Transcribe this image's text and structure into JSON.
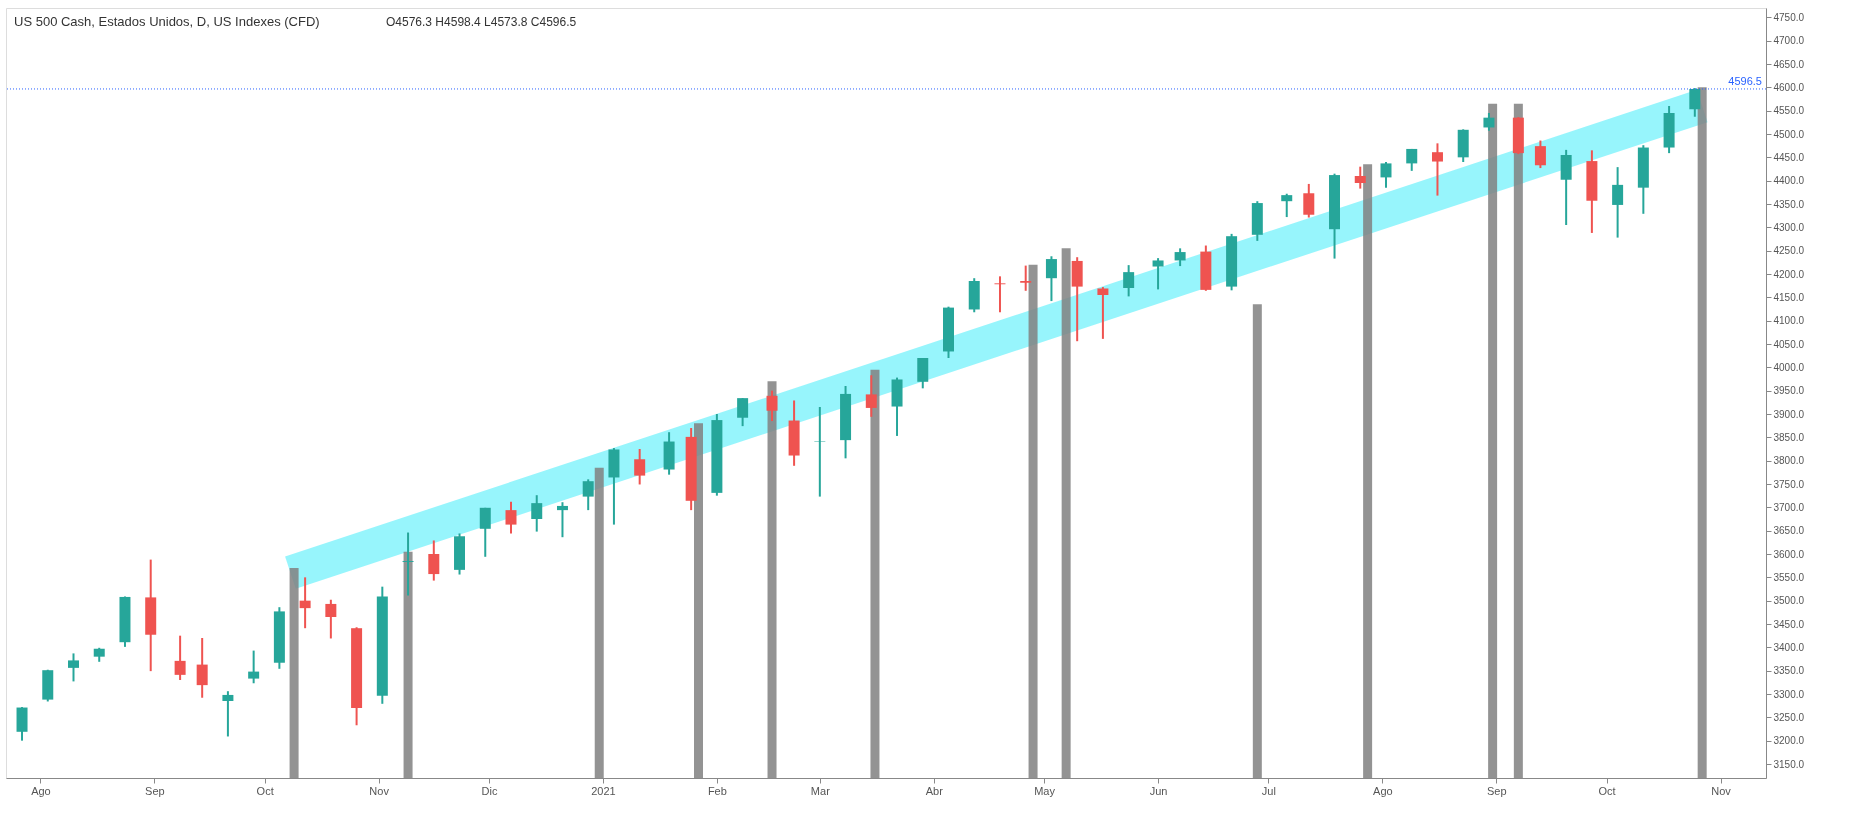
{
  "chart_data": {
    "type": "candlestick",
    "title": "US 500 Cash, Estados Unidos, D, US Indexes (CFD)",
    "annotations": [
      "O4576.3 H4598.4 L4573.8 C4596.5"
    ],
    "x": [
      "2020-07-27",
      "2020-08-03",
      "2020-08-10",
      "2020-08-17",
      "2020-08-24",
      "2020-08-31",
      "2020-09-08",
      "2020-09-14",
      "2020-09-21",
      "2020-09-28",
      "2020-10-05",
      "2020-10-12",
      "2020-10-19",
      "2020-10-26",
      "2020-11-02",
      "2020-11-09",
      "2020-11-16",
      "2020-11-23",
      "2020-11-30",
      "2020-12-07",
      "2020-12-14",
      "2020-12-21",
      "2020-12-28",
      "2021-01-04",
      "2021-01-11",
      "2021-01-19",
      "2021-01-25",
      "2021-02-01",
      "2021-02-08",
      "2021-02-16",
      "2021-02-22",
      "2021-03-01",
      "2021-03-08",
      "2021-03-15",
      "2021-03-22",
      "2021-03-29",
      "2021-04-05",
      "2021-04-12",
      "2021-04-19",
      "2021-04-26",
      "2021-05-03",
      "2021-05-10",
      "2021-05-17",
      "2021-05-24",
      "2021-06-01",
      "2021-06-07",
      "2021-06-14",
      "2021-06-21",
      "2021-06-28",
      "2021-07-06",
      "2021-07-12",
      "2021-07-19",
      "2021-07-26",
      "2021-08-02",
      "2021-08-09",
      "2021-08-16",
      "2021-08-23",
      "2021-08-30",
      "2021-09-07",
      "2021-09-13",
      "2021-09-20",
      "2021-09-27",
      "2021-10-04",
      "2021-10-11",
      "2021-10-18",
      "2021-10-25"
    ],
    "ohlc": [
      [
        3219,
        3272,
        3200,
        3271
      ],
      [
        3288,
        3352,
        3284,
        3351
      ],
      [
        3356,
        3387,
        3327,
        3372
      ],
      [
        3380,
        3399,
        3369,
        3397
      ],
      [
        3411,
        3509,
        3401,
        3508
      ],
      [
        3507,
        3588,
        3349,
        3427
      ],
      [
        3371,
        3425,
        3330,
        3341
      ],
      [
        3363,
        3420,
        3292,
        3319
      ],
      [
        3285,
        3306,
        3209,
        3298
      ],
      [
        3333,
        3393,
        3323,
        3348
      ],
      [
        3367,
        3486,
        3354,
        3477
      ],
      [
        3500,
        3550,
        3441,
        3484
      ],
      [
        3493,
        3502,
        3419,
        3465
      ],
      [
        3441,
        3443,
        3233,
        3270
      ],
      [
        3296,
        3530,
        3279,
        3509
      ],
      [
        3583,
        3646,
        3511,
        3585
      ],
      [
        3600,
        3629,
        3543,
        3557
      ],
      [
        3566,
        3644,
        3556,
        3638
      ],
      [
        3654,
        3699,
        3594,
        3699
      ],
      [
        3694,
        3712,
        3644,
        3663
      ],
      [
        3675,
        3726,
        3648,
        3709
      ],
      [
        3694,
        3711,
        3636,
        3703
      ],
      [
        3723,
        3760,
        3694,
        3756
      ],
      [
        3764,
        3827,
        3663,
        3824
      ],
      [
        3803,
        3825,
        3749,
        3768
      ],
      [
        3781,
        3861,
        3770,
        3841
      ],
      [
        3851,
        3870,
        3694,
        3714
      ],
      [
        3731,
        3900,
        3725,
        3887
      ],
      [
        3892,
        3934,
        3874,
        3934
      ],
      [
        3939,
        3950,
        3885,
        3907
      ],
      [
        3886,
        3929,
        3789,
        3811
      ],
      [
        3842,
        3915,
        3723,
        3841
      ],
      [
        3844,
        3960,
        3805,
        3943
      ],
      [
        3942,
        3983,
        3894,
        3913
      ],
      [
        3916,
        3978,
        3853,
        3974
      ],
      [
        3969,
        4020,
        3955,
        4020
      ],
      [
        4034,
        4130,
        4020,
        4128
      ],
      [
        4124,
        4191,
        4118,
        4185
      ],
      [
        4180,
        4195,
        4118,
        4178
      ],
      [
        4185,
        4218,
        4164,
        4181
      ],
      [
        4191,
        4238,
        4142,
        4232
      ],
      [
        4228,
        4236,
        4056,
        4173
      ],
      [
        4169,
        4172,
        4061,
        4155
      ],
      [
        4170,
        4219,
        4152,
        4204
      ],
      [
        4216,
        4234,
        4167,
        4229
      ],
      [
        4229,
        4255,
        4217,
        4247
      ],
      [
        4248,
        4261,
        4164,
        4166
      ],
      [
        4173,
        4286,
        4165,
        4281
      ],
      [
        4284,
        4356,
        4271,
        4352
      ],
      [
        4356,
        4372,
        4322,
        4369
      ],
      [
        4373,
        4393,
        4321,
        4327
      ],
      [
        4296,
        4415,
        4233,
        4412
      ],
      [
        4410,
        4430,
        4383,
        4395
      ],
      [
        4407,
        4440,
        4385,
        4437
      ],
      [
        4437,
        4468,
        4421,
        4468
      ],
      [
        4461,
        4480,
        4368,
        4441
      ],
      [
        4450,
        4510,
        4440,
        4509
      ],
      [
        4514,
        4545,
        4507,
        4535
      ],
      [
        4535,
        4536,
        4457,
        4459
      ],
      [
        4474,
        4486,
        4427,
        4433
      ],
      [
        4402,
        4466,
        4305,
        4455
      ],
      [
        4442,
        4465,
        4288,
        4357
      ],
      [
        4348,
        4429,
        4278,
        4391
      ],
      [
        4385,
        4476,
        4329,
        4471
      ],
      [
        4471,
        4560,
        4459,
        4545
      ],
      [
        4553,
        4598.4,
        4537,
        4596.5
      ]
    ],
    "colors": [
      "#26a69a",
      "#26a69a",
      "#26a69a",
      "#26a69a",
      "#26a69a",
      "#ef5350",
      "#ef5350",
      "#ef5350",
      "#26a69a",
      "#26a69a",
      "#26a69a",
      "#ef5350",
      "#ef5350",
      "#ef5350",
      "#26a69a",
      "#26a69a",
      "#ef5350",
      "#26a69a",
      "#26a69a",
      "#ef5350",
      "#26a69a",
      "#26a69a",
      "#26a69a",
      "#26a69a",
      "#ef5350",
      "#26a69a",
      "#ef5350",
      "#26a69a",
      "#26a69a",
      "#ef5350",
      "#ef5350",
      "#26a69a",
      "#26a69a",
      "#ef5350",
      "#26a69a",
      "#26a69a",
      "#26a69a",
      "#26a69a",
      "#ef5350",
      "#ef5350",
      "#26a69a",
      "#ef5350",
      "#ef5350",
      "#26a69a",
      "#26a69a",
      "#26a69a",
      "#ef5350",
      "#26a69a",
      "#26a69a",
      "#26a69a",
      "#ef5350",
      "#26a69a",
      "#ef5350",
      "#26a69a",
      "#26a69a",
      "#ef5350",
      "#26a69a",
      "#26a69a",
      "#ef5350",
      "#ef5350",
      "#26a69a",
      "#ef5350",
      "#26a69a",
      "#26a69a",
      "#26a69a",
      "#26a69a"
    ],
    "series": [
      {
        "type": "bar",
        "color": "#808080",
        "x": [
          "2020-10-09",
          "2020-11-09",
          "2020-12-31",
          "2021-01-27",
          "2021-02-16",
          "2021-03-16",
          "2021-04-28",
          "2021-05-07",
          "2021-06-28",
          "2021-07-28",
          "2021-08-31",
          "2021-09-07",
          "2021-10-27"
        ],
        "values": [
          3570,
          3605,
          3785,
          3880,
          3970,
          3995,
          4220,
          4255,
          4135,
          4435,
          4565,
          4565,
          4600
        ]
      },
      {
        "type": "line",
        "color": "#7df3fb",
        "x": [
          "2020-10-08",
          "2021-10-27"
        ],
        "values": [
          3560,
          4560
        ]
      }
    ],
    "xlim": [
      "2020-07-24",
      "2021-11-12"
    ],
    "xticks": [
      {
        "value": "2020-08-01",
        "label": "Ago"
      },
      {
        "value": "2020-09-01",
        "label": "Sep"
      },
      {
        "value": "2020-10-01",
        "label": "Oct"
      },
      {
        "value": "2020-11-01",
        "label": "Nov"
      },
      {
        "value": "2020-12-01",
        "label": "Dic"
      },
      {
        "value": "2021-01-01",
        "label": "2021"
      },
      {
        "value": "2021-02-01",
        "label": "Feb"
      },
      {
        "value": "2021-03-01",
        "label": "Mar"
      },
      {
        "value": "2021-04-01",
        "label": "Abr"
      },
      {
        "value": "2021-05-01",
        "label": "May"
      },
      {
        "value": "2021-06-01",
        "label": "Jun"
      },
      {
        "value": "2021-07-01",
        "label": "Jul"
      },
      {
        "value": "2021-08-01",
        "label": "Ago"
      },
      {
        "value": "2021-09-01",
        "label": "Sep"
      },
      {
        "value": "2021-10-01",
        "label": "Oct"
      },
      {
        "value": "2021-11-01",
        "label": "Nov"
      }
    ],
    "ylim": [
      3120,
      4770
    ],
    "yticks": [
      {
        "value": 3150,
        "label": "3150.0"
      },
      {
        "value": 3200,
        "label": "3200.0"
      },
      {
        "value": 3250,
        "label": "3250.0"
      },
      {
        "value": 3300,
        "label": "3300.0"
      },
      {
        "value": 3350,
        "label": "3350.0"
      },
      {
        "value": 3400,
        "label": "3400.0"
      },
      {
        "value": 3450,
        "label": "3450.0"
      },
      {
        "value": 3500,
        "label": "3500.0"
      },
      {
        "value": 3550,
        "label": "3550.0"
      },
      {
        "value": 3600,
        "label": "3600.0"
      },
      {
        "value": 3650,
        "label": "3650.0"
      },
      {
        "value": 3700,
        "label": "3700.0"
      },
      {
        "value": 3750,
        "label": "3750.0"
      },
      {
        "value": 3800,
        "label": "3800.0"
      },
      {
        "value": 3850,
        "label": "3850.0"
      },
      {
        "value": 3900,
        "label": "3900.0"
      },
      {
        "value": 3950,
        "label": "3950.0"
      },
      {
        "value": 4000,
        "label": "4000.0"
      },
      {
        "value": 4050,
        "label": "4050.0"
      },
      {
        "value": 4100,
        "label": "4100.0"
      },
      {
        "value": 4150,
        "label": "4150.0"
      },
      {
        "value": 4200,
        "label": "4200.0"
      },
      {
        "value": 4250,
        "label": "4250.0"
      },
      {
        "value": 4300,
        "label": "4300.0"
      },
      {
        "value": 4350,
        "label": "4350.0"
      },
      {
        "value": 4400,
        "label": "4400.0"
      },
      {
        "value": 4450,
        "label": "4450.0"
      },
      {
        "value": 4500,
        "label": "4500.0"
      },
      {
        "value": 4550,
        "label": "4550.0"
      },
      {
        "value": 4600,
        "label": "4600.0"
      },
      {
        "value": 4650,
        "label": "4650.0"
      },
      {
        "value": 4700,
        "label": "4700.0"
      },
      {
        "value": 4750,
        "label": "4750.0"
      }
    ],
    "ref_lines": [
      {
        "axis": "y",
        "value": 4596.5,
        "label": "4596.5",
        "color": "#2962ff",
        "line_style": "dotted"
      }
    ],
    "grid": false
  }
}
